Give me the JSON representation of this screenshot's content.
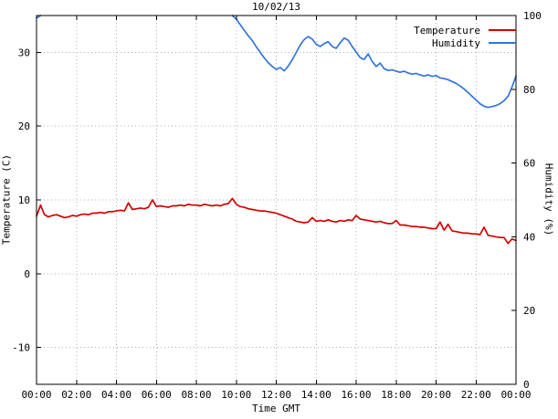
{
  "chart_data": {
    "type": "line",
    "title": "10/02/13",
    "xlabel": "Time GMT",
    "ylabel": "Temperature (C)",
    "y2label": "Humidity (%)",
    "xlim": [
      0,
      24
    ],
    "ylim": [
      -15,
      35
    ],
    "y2lim": [
      0,
      100
    ],
    "grid": true,
    "legend_position": "top-right",
    "x_tick_pos": [
      0,
      2,
      4,
      6,
      8,
      10,
      12,
      14,
      16,
      18,
      20,
      22,
      24
    ],
    "x_tick_labels": [
      "00:00",
      "02:00",
      "04:00",
      "06:00",
      "08:00",
      "10:00",
      "12:00",
      "14:00",
      "16:00",
      "18:00",
      "20:00",
      "22:00",
      "00:00"
    ],
    "y_ticks_left": [
      -10,
      0,
      10,
      20,
      30
    ],
    "y_ticks_right": [
      0,
      20,
      40,
      60,
      80,
      100
    ],
    "series": [
      {
        "name": "Temperature",
        "color": "#d40000",
        "axis": "left",
        "segments": [
          {
            "x0": 0,
            "step": 0.2,
            "values": [
              7.8,
              9.3,
              8.0,
              7.7,
              7.9,
              8.0,
              7.8,
              7.6,
              7.7,
              7.9,
              7.8,
              8.0,
              8.1,
              8.0,
              8.2,
              8.2,
              8.3,
              8.2,
              8.4,
              8.4,
              8.5,
              8.6,
              8.5,
              9.6,
              8.7,
              8.8,
              8.9,
              8.8,
              9.0,
              10.0,
              9.1,
              9.2,
              9.1,
              9.0,
              9.2,
              9.2,
              9.3,
              9.2,
              9.4,
              9.3,
              9.3,
              9.2,
              9.4,
              9.3,
              9.2,
              9.3,
              9.2,
              9.4,
              9.5,
              10.2,
              9.4,
              9.1,
              9.0,
              8.8,
              8.7,
              8.6,
              8.5,
              8.5,
              8.4,
              8.3,
              8.2,
              8.0,
              7.8,
              7.6,
              7.4,
              7.1,
              7.0,
              6.9,
              7.0,
              7.6,
              7.1,
              7.2,
              7.1,
              7.3,
              7.1,
              7.0,
              7.2,
              7.1,
              7.3,
              7.2,
              7.9,
              7.4,
              7.3,
              7.2,
              7.1,
              7.0,
              7.1,
              6.9,
              6.8,
              6.8,
              7.2,
              6.6,
              6.6,
              6.5,
              6.4,
              6.4,
              6.3,
              6.3,
              6.2,
              6.1,
              6.1,
              7.0,
              5.9,
              6.7,
              5.8,
              5.7,
              5.6,
              5.5,
              5.5,
              5.4,
              5.4,
              5.3,
              6.3,
              5.2,
              5.1,
              5.0,
              4.9,
              4.9,
              4.1,
              4.7,
              4.5
            ]
          }
        ]
      },
      {
        "name": "Humidity",
        "color": "#3176d9",
        "axis": "right",
        "segments": [
          {
            "x0": 0,
            "step": 0.2,
            "values": [
              99.3,
              100
            ]
          },
          {
            "x0": 9.8,
            "step": 0.2,
            "values": [
              100,
              99,
              97.5,
              96,
              94.5,
              93.2,
              91.5,
              90,
              88.5,
              87.2,
              86.2,
              85.4,
              85.9,
              85.0,
              86.3,
              88,
              90,
              92,
              93.5,
              94.3,
              93.6,
              92.2,
              91.6,
              92.4,
              92.9,
              91.6,
              91.1,
              92.6,
              93.9,
              93.3,
              91.6,
              90.1,
              88.6,
              88.1,
              89.6,
              87.6,
              86.2,
              87.1,
              85.6,
              85.1,
              85.3,
              84.9,
              84.6,
              84.9,
              84.4,
              84.1,
              84.3,
              83.9,
              83.6,
              83.9,
              83.5,
              83.7,
              83.1,
              82.9,
              82.6,
              82.1,
              81.6,
              80.9,
              80.1,
              79.1,
              78.1,
              77.1,
              76.1,
              75.4,
              75.1,
              75.3,
              75.6,
              76.1,
              76.9,
              78.1,
              80.6,
              83.6
            ]
          }
        ]
      }
    ]
  }
}
